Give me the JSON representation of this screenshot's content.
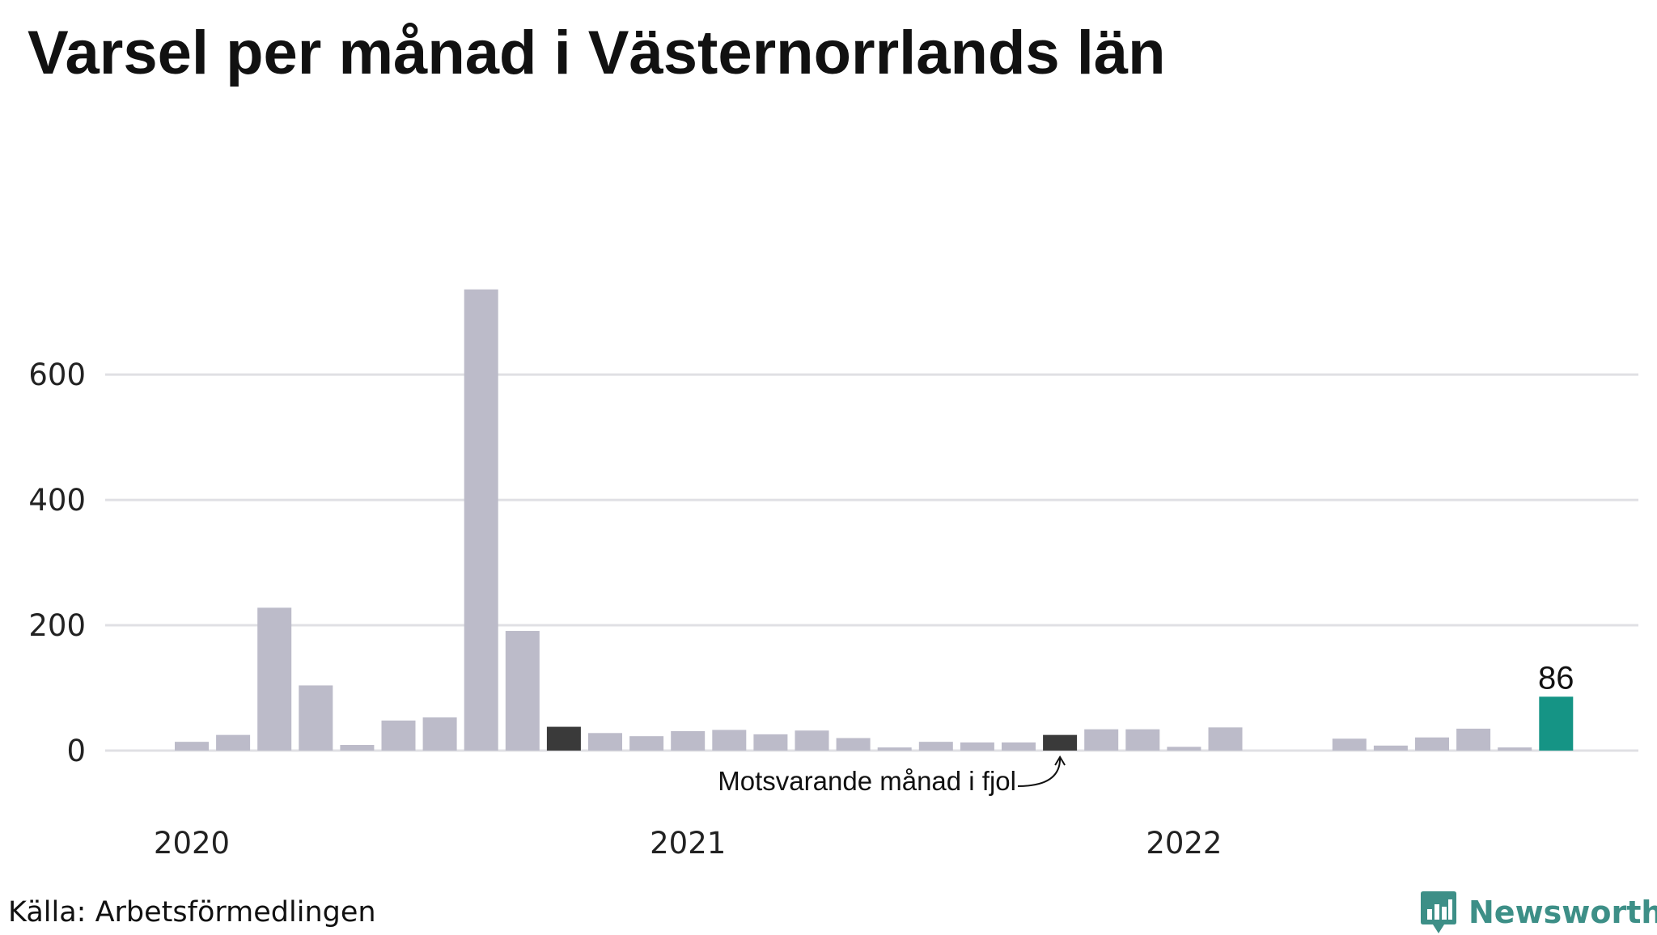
{
  "title": "Varsel per månad i Västernorrlands län",
  "source": "Källa: Arbetsförmedlingen",
  "brand": {
    "name": "Newsworthy",
    "icon": "newsworthy-logo-icon",
    "color": "#3d8f87"
  },
  "colors": {
    "bar": "#bcbbc9",
    "highlight": "#159485",
    "comparison": "#3a3a3a",
    "grid": "#e0e0e4"
  },
  "chart_data": {
    "type": "bar",
    "title": "Varsel per månad i Västernorrlands län",
    "xlabel": "",
    "ylabel": "",
    "ylim": [
      0,
      740
    ],
    "yticks": [
      0,
      200,
      400,
      600
    ],
    "x_tick_labels": [
      {
        "label": "2020",
        "index": 0
      },
      {
        "label": "2021",
        "index": 12
      },
      {
        "label": "2022",
        "index": 24
      }
    ],
    "categories": [
      "2020-01",
      "2020-02",
      "2020-03",
      "2020-04",
      "2020-05",
      "2020-06",
      "2020-07",
      "2020-08",
      "2020-09",
      "2020-10",
      "2020-11",
      "2020-12",
      "2021-01",
      "2021-02",
      "2021-03",
      "2021-04",
      "2021-05",
      "2021-06",
      "2021-07",
      "2021-08",
      "2021-09",
      "2021-10",
      "2021-11",
      "2021-12",
      "2022-01",
      "2022-02",
      "2022-03",
      "2022-04",
      "2022-05",
      "2022-06",
      "2022-07",
      "2022-08",
      "2022-09",
      "2022-10"
    ],
    "values": [
      14,
      25,
      228,
      104,
      9,
      48,
      53,
      736,
      191,
      38,
      28,
      23,
      31,
      33,
      26,
      32,
      20,
      5,
      14,
      13,
      13,
      25,
      34,
      34,
      6,
      37,
      0,
      0,
      19,
      8,
      21,
      35,
      5,
      86
    ],
    "highlight_index": 33,
    "highlight_label": "86",
    "comparison_indices": [
      9,
      21
    ],
    "annotation": {
      "text": "Motsvarande månad i fjol",
      "target_index": 21
    },
    "grid": true,
    "legend": "none"
  }
}
